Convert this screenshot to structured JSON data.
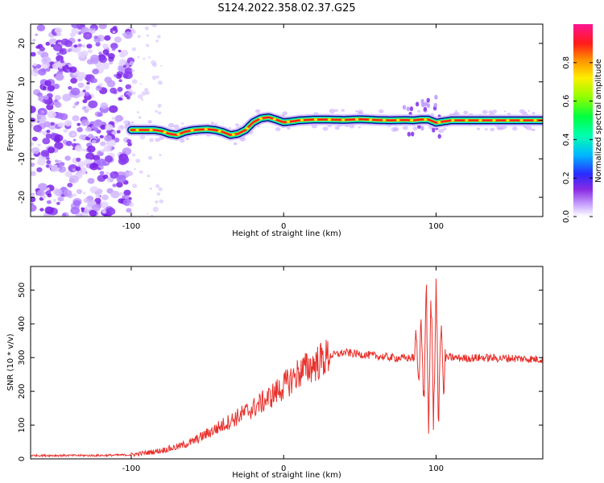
{
  "title": "S124.2022.358.02.37.G25",
  "colors": {
    "line": "#e8312c",
    "track_outline": "#000000"
  },
  "chart_data": [
    {
      "type": "heatmap",
      "xlabel": "Height of straight line (km)",
      "ylabel": "Frequency (Hz)",
      "xlim": [
        -166,
        170
      ],
      "ylim": [
        -25,
        25
      ],
      "xticks": [
        -100,
        0,
        100
      ],
      "xtick_labels": [
        "-100",
        "0",
        "100"
      ],
      "yticks": [
        -20,
        -10,
        0,
        10,
        20
      ],
      "ytick_labels": [
        "-20",
        "-10",
        "0",
        "10",
        "20"
      ],
      "colorbar": {
        "label": "Normalized spectral amplitude",
        "range": [
          0,
          1
        ],
        "ticks": [
          0.0,
          0.2,
          0.4,
          0.6,
          0.8
        ],
        "tick_labels": [
          "0.0",
          "0.2",
          "0.4",
          "0.6",
          "0.8"
        ],
        "colormap": [
          "#ffffff",
          "#9b59ff",
          "#2020ff",
          "#00c8ff",
          "#00ff80",
          "#80ff00",
          "#ffff00",
          "#ff8000",
          "#ff0000",
          "#ff1090"
        ]
      },
      "track": {
        "x": [
          -100,
          -95,
          -90,
          -85,
          -80,
          -75,
          -70,
          -65,
          -60,
          -55,
          -50,
          -45,
          -40,
          -35,
          -30,
          -25,
          -20,
          -15,
          -10,
          -5,
          0,
          5,
          10,
          20,
          30,
          40,
          50,
          60,
          70,
          80,
          85,
          90,
          95,
          100,
          110,
          120,
          130,
          140,
          150,
          160,
          170
        ],
        "y": [
          -2.5,
          -2.5,
          -2.5,
          -2.5,
          -2.8,
          -3.5,
          -3.8,
          -3.0,
          -2.6,
          -2.4,
          -2.3,
          -2.5,
          -3.0,
          -3.8,
          -3.5,
          -2.5,
          -0.5,
          0.5,
          0.8,
          0.2,
          -0.5,
          -0.3,
          0.0,
          0.2,
          0.2,
          0.1,
          0.3,
          0.1,
          0.0,
          0.1,
          0.0,
          0.2,
          0.2,
          -0.6,
          0.0,
          0.0,
          0.0,
          0.0,
          0.0,
          0.0,
          0.0
        ]
      }
    },
    {
      "type": "line",
      "xlabel": "Height of straight line (km)",
      "ylabel": "SNR (10 * v/v)",
      "xlim": [
        -166,
        170
      ],
      "ylim": [
        0,
        570
      ],
      "xticks": [
        -100,
        0,
        100
      ],
      "xtick_labels": [
        "-100",
        "0",
        "100"
      ],
      "yticks": [
        0,
        100,
        200,
        300,
        400,
        500
      ],
      "ytick_labels": [
        "0",
        "100",
        "200",
        "300",
        "400",
        "500"
      ],
      "envelope": {
        "x": [
          -166,
          -120,
          -100,
          -90,
          -80,
          -70,
          -60,
          -50,
          -40,
          -30,
          -20,
          -10,
          0,
          10,
          20,
          30,
          40,
          50,
          60,
          70,
          80,
          85,
          88,
          92,
          96,
          100,
          104,
          110,
          120,
          130,
          140,
          150,
          160,
          170
        ],
        "y": [
          10,
          10,
          12,
          18,
          25,
          35,
          50,
          75,
          100,
          125,
          150,
          180,
          215,
          255,
          280,
          305,
          315,
          310,
          305,
          300,
          298,
          300,
          300,
          300,
          300,
          300,
          300,
          300,
          298,
          300,
          298,
          298,
          296,
          295
        ]
      }
    }
  ]
}
